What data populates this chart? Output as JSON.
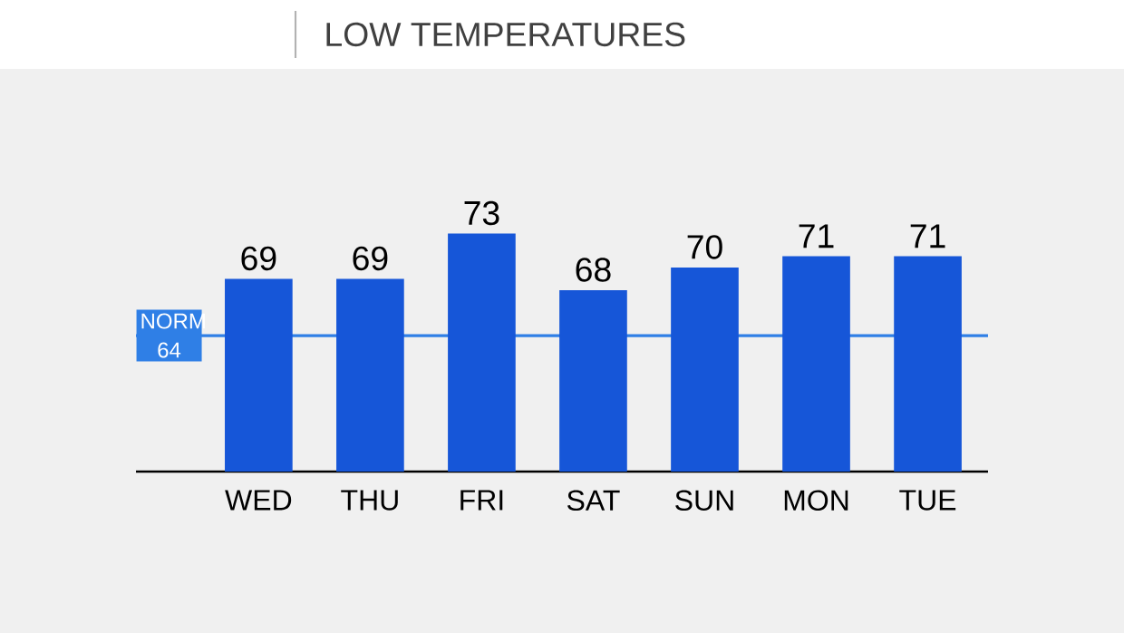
{
  "chart_data": {
    "type": "bar",
    "title": "LOW TEMPERATURES",
    "categories": [
      "WED",
      "THU",
      "FRI",
      "SAT",
      "SUN",
      "MON",
      "TUE"
    ],
    "values": [
      69,
      69,
      73,
      68,
      70,
      71,
      71
    ],
    "color": "#1656d8",
    "ylim": [
      52,
      73
    ],
    "data_labels": true,
    "tick_labels": "x",
    "ref_lines": [
      {
        "axis": "y",
        "value": 64,
        "label": "NORM 64",
        "color": "#2f7fe6"
      }
    ]
  }
}
